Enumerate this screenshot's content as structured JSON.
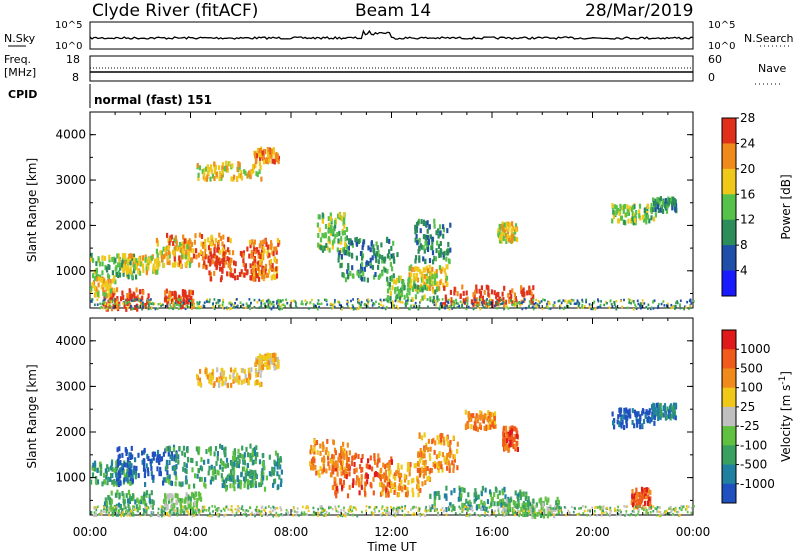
{
  "header": {
    "title": "Clyde River (fitACF)",
    "beam": "Beam 14",
    "date": "28/Mar/2019"
  },
  "side_labels": {
    "nsky": "N.Sky",
    "nsearch": "N.Search",
    "freq": "Freq.",
    "freq_unit": "[MHz]",
    "nave": "Nave",
    "cpid": "CPID",
    "cpid_value": "normal (fast) 151"
  },
  "small_axes": {
    "noise_top": "10^5",
    "noise_bottom": "10^0",
    "freq_top": "18",
    "freq_bottom": "8",
    "nave_top": "60",
    "nave_bottom": "0"
  },
  "chart_data": [
    {
      "type": "heatmap",
      "panel": "power",
      "ylabel": "Slant Range [km]",
      "yticks": [
        "1000",
        "2000",
        "3000",
        "4000"
      ],
      "ylim": [
        180,
        4500
      ],
      "colorbar": {
        "label": "Power [dB]",
        "ticks": [
          "4",
          "8",
          "12",
          "16",
          "20",
          "24",
          "28"
        ],
        "colors": [
          "#1a1aff",
          "#1f4fa8",
          "#2c8c5a",
          "#57c24a",
          "#f0c81a",
          "#f08a1a",
          "#e0301a"
        ]
      },
      "blobs": [
        {
          "t": 0.9,
          "r": 1150,
          "dt": 0.9,
          "dr": 250,
          "c": 3
        },
        {
          "t": 2.0,
          "r": 1200,
          "dt": 0.7,
          "dr": 200,
          "c": 4
        },
        {
          "t": 3.3,
          "r": 1450,
          "dt": 0.7,
          "dr": 300,
          "c": 4
        },
        {
          "t": 4.3,
          "r": 1500,
          "dt": 1.3,
          "dr": 350,
          "c": 5
        },
        {
          "t": 5.7,
          "r": 1200,
          "dt": 1.2,
          "dr": 350,
          "c": 6
        },
        {
          "t": 6.9,
          "r": 1300,
          "dt": 0.6,
          "dr": 450,
          "c": 5
        },
        {
          "t": 1.4,
          "r": 420,
          "dt": 0.9,
          "dr": 220,
          "c": 6
        },
        {
          "t": 3.5,
          "r": 430,
          "dt": 0.6,
          "dr": 180,
          "c": 6
        },
        {
          "t": 0.4,
          "r": 700,
          "dt": 0.6,
          "dr": 200,
          "c": 4
        },
        {
          "t": 5.5,
          "r": 3250,
          "dt": 1.3,
          "dr": 180,
          "c": 4
        },
        {
          "t": 7.0,
          "r": 3600,
          "dt": 0.5,
          "dr": 150,
          "c": 5
        },
        {
          "t": 9.6,
          "r": 1900,
          "dt": 0.6,
          "dr": 400,
          "c": 3
        },
        {
          "t": 11.0,
          "r": 1300,
          "dt": 1.2,
          "dr": 450,
          "c": 2
        },
        {
          "t": 13.6,
          "r": 1700,
          "dt": 0.7,
          "dr": 450,
          "c": 2
        },
        {
          "t": 13.4,
          "r": 900,
          "dt": 0.8,
          "dr": 250,
          "c": 4
        },
        {
          "t": 15.8,
          "r": 500,
          "dt": 1.8,
          "dr": 200,
          "c": 6
        },
        {
          "t": 12.8,
          "r": 650,
          "dt": 1.0,
          "dr": 250,
          "c": 3
        },
        {
          "t": 21.6,
          "r": 2300,
          "dt": 0.9,
          "dr": 200,
          "c": 3
        },
        {
          "t": 22.8,
          "r": 2500,
          "dt": 0.5,
          "dr": 150,
          "c": 2
        },
        {
          "t": 16.6,
          "r": 1900,
          "dt": 0.4,
          "dr": 200,
          "c": 4
        }
      ]
    },
    {
      "type": "heatmap",
      "panel": "velocity",
      "ylabel": "Slant Range [km]",
      "yticks": [
        "1000",
        "2000",
        "3000",
        "4000"
      ],
      "ylim": [
        180,
        4500
      ],
      "xlabel": "Time UT",
      "xticks": [
        "00:00",
        "04:00",
        "08:00",
        "12:00",
        "16:00",
        "20:00",
        "00:00"
      ],
      "xlim": [
        0,
        24
      ],
      "colorbar": {
        "label": "Velocity [m s^-1]",
        "ticks": [
          "1000",
          "500",
          "100",
          "25",
          "-25",
          "-100",
          "-500",
          "-1000"
        ],
        "colors": [
          "#2050c0",
          "#2080a0",
          "#3aa060",
          "#60c040",
          "#c0c0c0",
          "#f0c81a",
          "#f08a1a",
          "#f05a1a",
          "#e01a1a"
        ]
      },
      "blobs": [
        {
          "t": 0.9,
          "r": 1150,
          "dt": 0.9,
          "dr": 250,
          "c": 2
        },
        {
          "t": 2.3,
          "r": 1300,
          "dt": 1.3,
          "dr": 400,
          "c": 0
        },
        {
          "t": 4.8,
          "r": 1300,
          "dt": 1.8,
          "dr": 450,
          "c": 2
        },
        {
          "t": 6.4,
          "r": 1200,
          "dt": 1.2,
          "dr": 400,
          "c": 2
        },
        {
          "t": 1.5,
          "r": 500,
          "dt": 1.0,
          "dr": 250,
          "c": 2
        },
        {
          "t": 3.6,
          "r": 500,
          "dt": 0.8,
          "dr": 200,
          "c": 3
        },
        {
          "t": 5.5,
          "r": 3250,
          "dt": 1.3,
          "dr": 180,
          "c": 5
        },
        {
          "t": 7.0,
          "r": 3600,
          "dt": 0.5,
          "dr": 150,
          "c": 5
        },
        {
          "t": 9.5,
          "r": 1500,
          "dt": 0.8,
          "dr": 400,
          "c": 6
        },
        {
          "t": 10.8,
          "r": 1100,
          "dt": 1.2,
          "dr": 450,
          "c": 7
        },
        {
          "t": 12.5,
          "r": 1000,
          "dt": 1.0,
          "dr": 350,
          "c": 6
        },
        {
          "t": 13.8,
          "r": 1600,
          "dt": 0.8,
          "dr": 400,
          "c": 6
        },
        {
          "t": 15.5,
          "r": 2300,
          "dt": 0.6,
          "dr": 200,
          "c": 6
        },
        {
          "t": 16.7,
          "r": 1900,
          "dt": 0.3,
          "dr": 250,
          "c": 7
        },
        {
          "t": 15.5,
          "r": 600,
          "dt": 2.0,
          "dr": 250,
          "c": 2
        },
        {
          "t": 17.5,
          "r": 400,
          "dt": 1.2,
          "dr": 200,
          "c": 3
        },
        {
          "t": 21.6,
          "r": 2350,
          "dt": 0.9,
          "dr": 200,
          "c": 0
        },
        {
          "t": 22.8,
          "r": 2500,
          "dt": 0.5,
          "dr": 150,
          "c": 1
        },
        {
          "t": 21.9,
          "r": 600,
          "dt": 0.4,
          "dr": 200,
          "c": 7
        }
      ]
    }
  ]
}
